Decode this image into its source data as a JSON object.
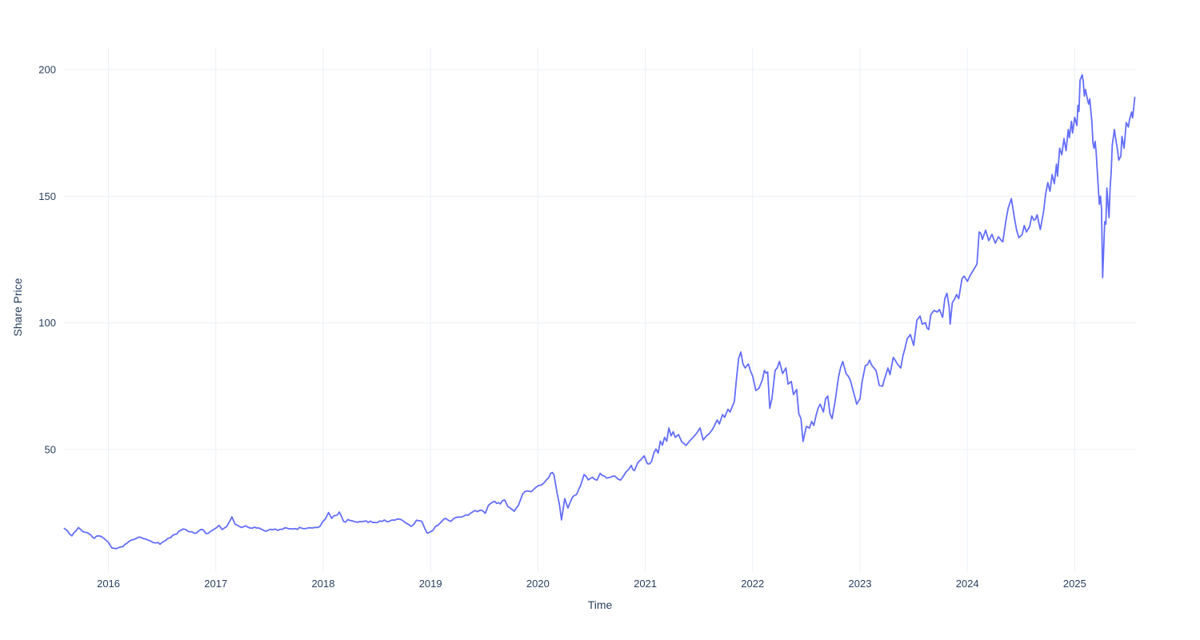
{
  "chart_data": {
    "type": "line",
    "title": "",
    "xlabel": "Time",
    "ylabel": "Share Price",
    "grid": true,
    "legend": "none",
    "x_ticks": [
      2016,
      2017,
      2018,
      2019,
      2020,
      2021,
      2022,
      2023,
      2024,
      2025
    ],
    "y_ticks": [
      50,
      100,
      150,
      200
    ],
    "x_range": [
      2015.586,
      2025.571
    ],
    "y_range": [
      3.2,
      208.9
    ],
    "colors": {
      "line": "#636EFA",
      "grid": "#EBF0F6",
      "text": "#2a3f5f",
      "background": "#ffffff"
    },
    "series": [
      {
        "name": "Share Price",
        "x": [
          2015.59,
          2015.62,
          2015.66,
          2015.7,
          2015.72,
          2015.76,
          2015.8,
          2015.83,
          2015.87,
          2015.9,
          2015.95,
          2016.0,
          2016.03,
          2016.07,
          2016.12,
          2016.17,
          2016.21,
          2016.26,
          2016.3,
          2016.35,
          2016.39,
          2016.44,
          2016.48,
          2016.53,
          2016.58,
          2016.62,
          2016.67,
          2016.72,
          2016.76,
          2016.8,
          2016.84,
          2016.88,
          2016.91,
          2016.95,
          2016.98,
          2017.03,
          2017.06,
          2017.1,
          2017.15,
          2017.18,
          2017.22,
          2017.3,
          2017.38,
          2017.45,
          2017.53,
          2017.6,
          2017.7,
          2017.8,
          2017.9,
          2017.97,
          2018.02,
          2018.05,
          2018.08,
          2018.12,
          2018.15,
          2018.19,
          2018.25,
          2018.32,
          2018.4,
          2018.48,
          2018.55,
          2018.63,
          2018.71,
          2018.77,
          2018.82,
          2018.87,
          2018.92,
          2018.97,
          2019.0,
          2019.07,
          2019.14,
          2019.19,
          2019.24,
          2019.31,
          2019.39,
          2019.46,
          2019.51,
          2019.54,
          2019.6,
          2019.65,
          2019.69,
          2019.72,
          2019.78,
          2019.82,
          2019.86,
          2019.92,
          2019.96,
          2020.03,
          2020.08,
          2020.12,
          2020.15,
          2020.18,
          2020.2,
          2020.22,
          2020.25,
          2020.28,
          2020.32,
          2020.36,
          2020.4,
          2020.43,
          2020.47,
          2020.51,
          2020.55,
          2020.58,
          2020.62,
          2020.66,
          2020.7,
          2020.74,
          2020.77,
          2020.82,
          2020.87,
          2020.9,
          2020.93,
          2020.96,
          2020.99,
          2021.02,
          2021.06,
          2021.08,
          2021.1,
          2021.12,
          2021.14,
          2021.16,
          2021.18,
          2021.2,
          2021.22,
          2021.24,
          2021.26,
          2021.28,
          2021.31,
          2021.34,
          2021.38,
          2021.42,
          2021.45,
          2021.48,
          2021.51,
          2021.54,
          2021.57,
          2021.61,
          2021.64,
          2021.67,
          2021.69,
          2021.72,
          2021.74,
          2021.77,
          2021.79,
          2021.81,
          2021.83,
          2021.85,
          2021.87,
          2021.89,
          2021.91,
          2021.93,
          2021.96,
          2021.98,
          2022.0,
          2022.03,
          2022.06,
          2022.09,
          2022.11,
          2022.14,
          2022.16,
          2022.18,
          2022.21,
          2022.25,
          2022.28,
          2022.31,
          2022.33,
          2022.36,
          2022.38,
          2022.41,
          2022.43,
          2022.45,
          2022.47,
          2022.5,
          2022.53,
          2022.55,
          2022.57,
          2022.59,
          2022.61,
          2022.63,
          2022.66,
          2022.68,
          2022.7,
          2022.72,
          2022.74,
          2022.77,
          2022.8,
          2022.84,
          2022.87,
          2022.89,
          2022.91,
          2022.94,
          2022.97,
          2023.0,
          2023.02,
          2023.05,
          2023.09,
          2023.13,
          2023.15,
          2023.18,
          2023.21,
          2023.23,
          2023.26,
          2023.28,
          2023.31,
          2023.35,
          2023.38,
          2023.4,
          2023.44,
          2023.47,
          2023.5,
          2023.53,
          2023.56,
          2023.58,
          2023.61,
          2023.64,
          2023.66,
          2023.69,
          2023.72,
          2023.74,
          2023.77,
          2023.79,
          2023.81,
          2023.83,
          2023.84,
          2023.86,
          2023.9,
          2023.92,
          2023.95,
          2023.97,
          2024.0,
          2024.03,
          2024.06,
          2024.09,
          2024.11,
          2024.14,
          2024.17,
          2024.2,
          2024.23,
          2024.26,
          2024.29,
          2024.33,
          2024.36,
          2024.38,
          2024.41,
          2024.44,
          2024.46,
          2024.48,
          2024.51,
          2024.53,
          2024.55,
          2024.58,
          2024.6,
          2024.62,
          2024.65,
          2024.68,
          2024.71,
          2024.73,
          2024.75,
          2024.77,
          2024.79,
          2024.81,
          2024.83,
          2024.84,
          2024.86,
          2024.88,
          2024.9,
          2024.92,
          2024.94,
          2024.95,
          2024.97,
          2024.98,
          2025.0,
          2025.02,
          2025.03,
          2025.04,
          2025.05,
          2025.07,
          2025.08,
          2025.09,
          2025.1,
          2025.12,
          2025.13,
          2025.14,
          2025.16,
          2025.17,
          2025.18,
          2025.19,
          2025.2,
          2025.22,
          2025.23,
          2025.24,
          2025.25,
          2025.26,
          2025.28,
          2025.29,
          2025.3,
          2025.32,
          2025.33,
          2025.34,
          2025.35,
          2025.37,
          2025.38,
          2025.4,
          2025.41,
          2025.43,
          2025.44,
          2025.46,
          2025.48,
          2025.5,
          2025.51,
          2025.53,
          2025.54,
          2025.56
        ],
        "y": [
          18.8,
          17.8,
          15.9,
          18.0,
          19.2,
          17.6,
          17.2,
          16.5,
          14.9,
          15.9,
          15.2,
          13.3,
          11.2,
          10.8,
          11.6,
          12.9,
          14.2,
          14.9,
          15.3,
          14.6,
          13.9,
          13.1,
          12.6,
          14.0,
          15.2,
          16.5,
          18.0,
          18.4,
          17.5,
          16.9,
          17.8,
          18.3,
          16.8,
          17.6,
          18.4,
          20.0,
          18.4,
          19.5,
          23.4,
          20.5,
          19.6,
          19.3,
          19.0,
          18.0,
          18.3,
          18.5,
          18.7,
          18.9,
          19.0,
          19.6,
          22.5,
          25.1,
          22.8,
          24.0,
          25.3,
          21.6,
          22.0,
          21.3,
          21.8,
          21.2,
          21.6,
          22.0,
          22.5,
          21.0,
          19.6,
          22.1,
          21.6,
          16.9,
          17.5,
          20.1,
          22.8,
          21.6,
          23.2,
          23.7,
          25.3,
          26.0,
          24.8,
          28.0,
          29.5,
          28.5,
          30.1,
          27.5,
          25.6,
          28.0,
          32.6,
          33.5,
          34.2,
          35.9,
          38.0,
          40.6,
          40.0,
          32.6,
          28.4,
          22.2,
          30.6,
          26.9,
          31.0,
          32.2,
          36.0,
          40.1,
          38.0,
          39.0,
          37.9,
          40.6,
          39.5,
          38.9,
          39.5,
          38.5,
          37.9,
          41.1,
          43.7,
          41.7,
          44.8,
          46.0,
          47.5,
          44.4,
          45.4,
          48.6,
          50.2,
          48.6,
          53.3,
          51.7,
          54.8,
          53.3,
          58.5,
          55.4,
          57.0,
          54.8,
          55.9,
          53.0,
          51.6,
          53.7,
          55.0,
          56.5,
          58.5,
          53.8,
          55.4,
          57.0,
          59.1,
          61.7,
          60.1,
          63.8,
          62.7,
          65.9,
          64.8,
          67.0,
          69.0,
          78.0,
          86.0,
          88.5,
          83.8,
          82.2,
          83.8,
          81.0,
          79.0,
          73.3,
          74.2,
          77.4,
          81.2,
          80.6,
          66.3,
          70.1,
          81.2,
          84.8,
          80.0,
          82.2,
          75.8,
          76.9,
          71.7,
          73.7,
          64.2,
          62.2,
          53.2,
          59.1,
          58.5,
          61.1,
          59.5,
          63.2,
          66.3,
          67.9,
          64.8,
          70.1,
          71.1,
          64.2,
          62.2,
          69.5,
          78.5,
          84.8,
          80.0,
          79.0,
          77.4,
          72.7,
          67.9,
          70.1,
          76.9,
          83.2,
          85.3,
          82.2,
          81.2,
          75.3,
          75.0,
          78.0,
          82.2,
          79.6,
          86.4,
          83.7,
          82.2,
          86.9,
          93.8,
          95.4,
          91.1,
          101.1,
          102.7,
          99.5,
          100.1,
          97.4,
          103.3,
          104.9,
          104.3,
          105.3,
          102.2,
          109.6,
          111.7,
          106.4,
          99.5,
          108.0,
          111.2,
          109.6,
          117.5,
          118.5,
          116.4,
          119.0,
          121.1,
          123.2,
          135.9,
          133.0,
          136.6,
          132.5,
          135.0,
          131.5,
          134.0,
          132.0,
          140.6,
          145.3,
          149.1,
          141.2,
          136.4,
          133.7,
          134.8,
          138.5,
          135.9,
          138.0,
          142.2,
          140.6,
          142.7,
          136.9,
          144.0,
          151.1,
          155.4,
          152.0,
          158.6,
          155.0,
          162.7,
          158.0,
          169.0,
          166.4,
          172.8,
          168.0,
          176.4,
          173.2,
          179.6,
          175.0,
          181.2,
          178.0,
          185.9,
          183.5,
          195.9,
          198.0,
          195.3,
          189.6,
          192.2,
          188.0,
          186.4,
          188.5,
          179.6,
          171.2,
          169.0,
          171.7,
          167.4,
          153.2,
          146.9,
          150.1,
          145.0,
          117.9,
          140.0,
          139.0,
          153.3,
          141.6,
          153.7,
          159.6,
          170.1,
          176.4,
          173.2,
          167.9,
          164.3,
          165.9,
          173.7,
          169.0,
          179.1,
          177.4,
          180.1,
          183.3,
          181.0,
          189.1
        ]
      }
    ]
  }
}
